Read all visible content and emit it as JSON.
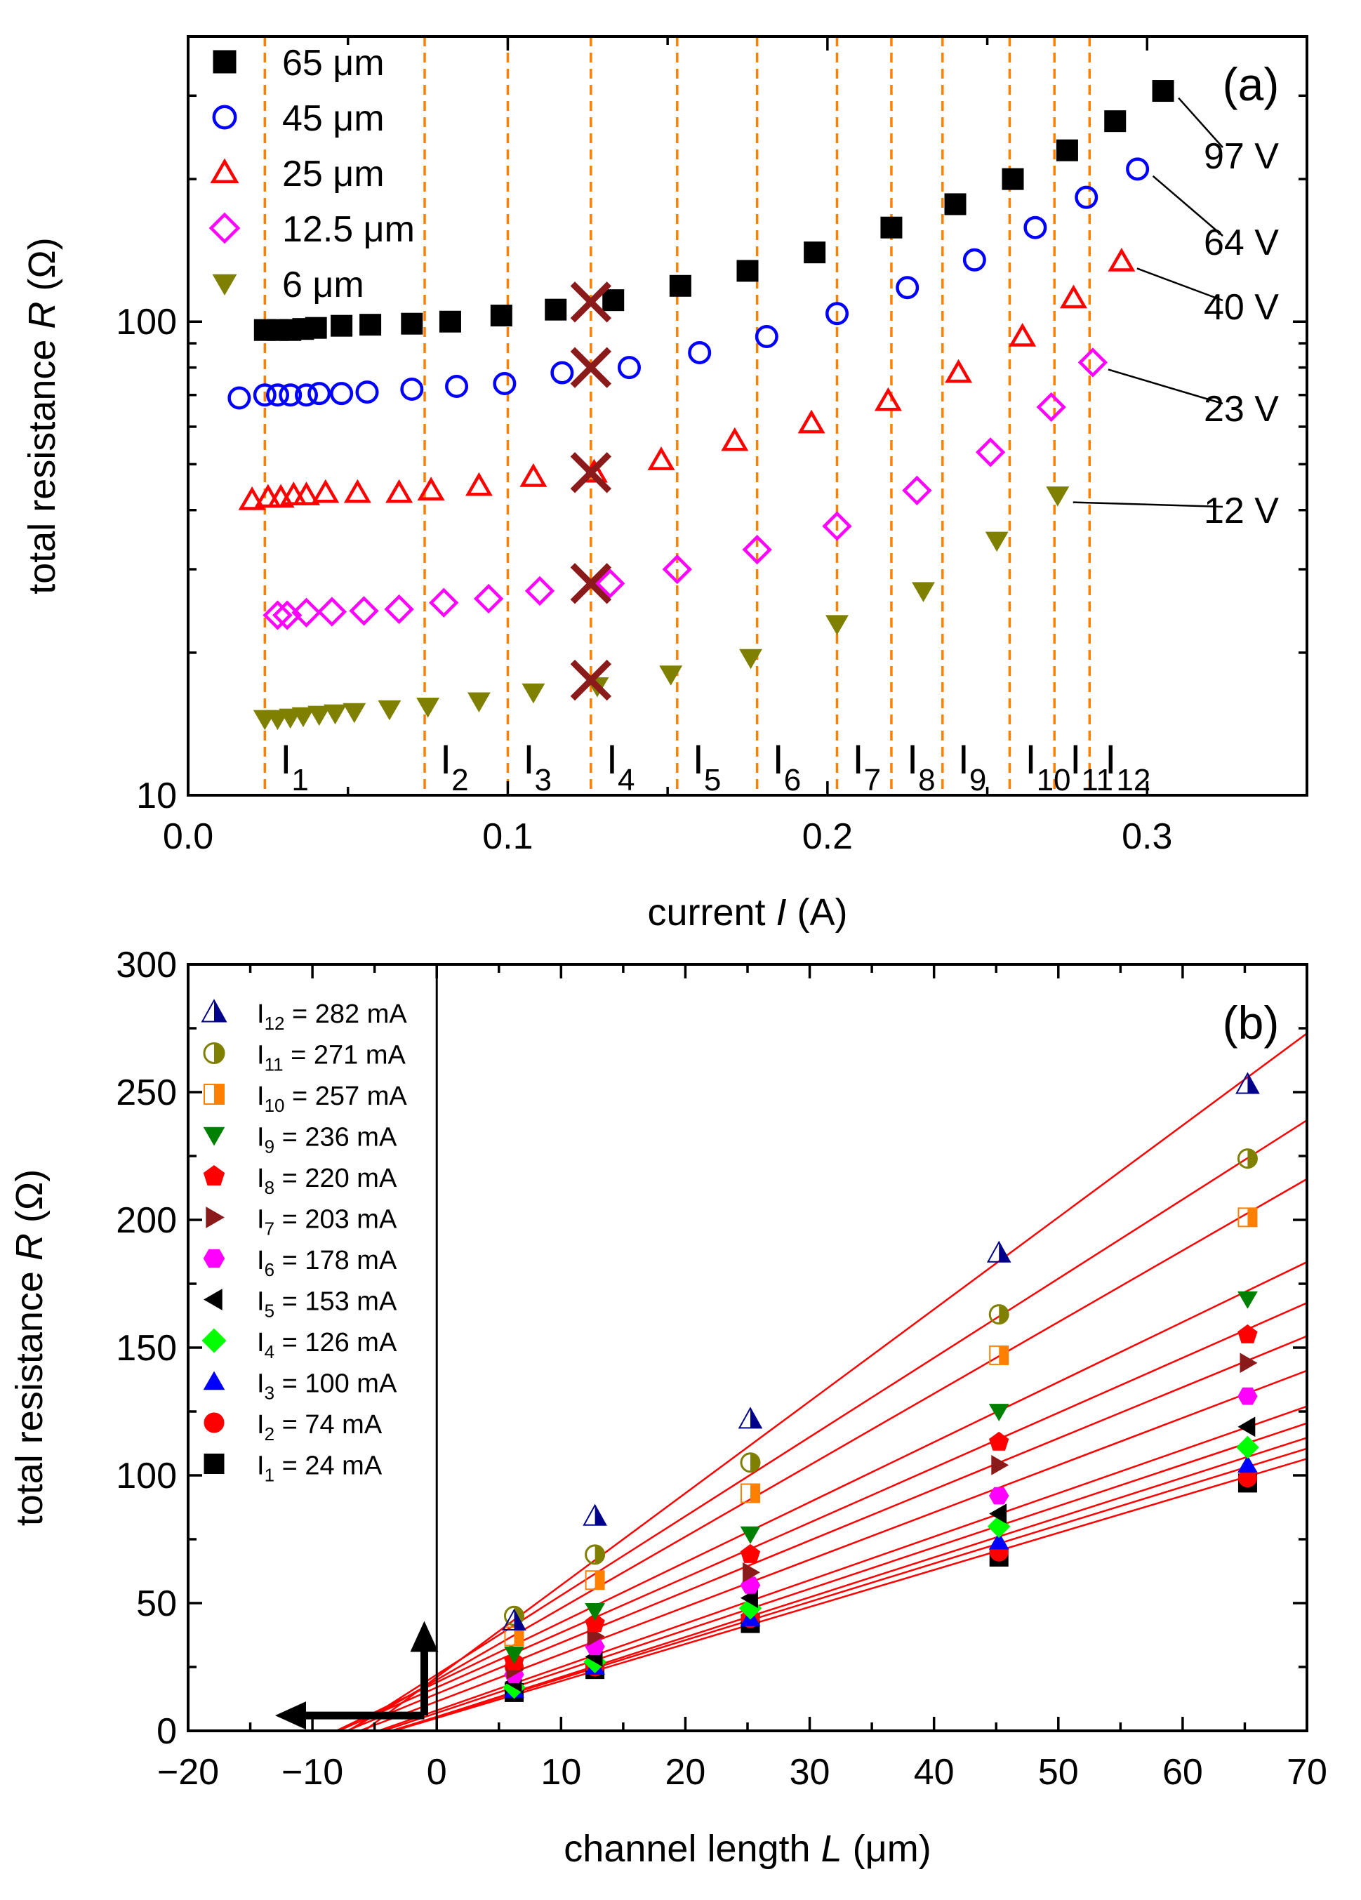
{
  "chart_data": [
    {
      "type": "scatter",
      "panel": "(a)",
      "xlabel": "current",
      "xlabel_var": "I",
      "xlabel_unit": "(A)",
      "ylabel": "total resistance",
      "ylabel_var": "R",
      "ylabel_unit": "(Ω)",
      "xlim": [
        0,
        0.35
      ],
      "ylim": [
        10,
        400
      ],
      "yscale": "log",
      "x_ticks": [
        0.0,
        0.1,
        0.2,
        0.3
      ],
      "x_tick_labels": [
        "0.0",
        "0.1",
        "0.2",
        "0.3"
      ],
      "y_ticks": [
        10,
        100
      ],
      "y_tick_labels": [
        "10",
        "100"
      ],
      "legend_position": "top-left",
      "series": [
        {
          "name": "65 μm",
          "marker": "square-filled",
          "color": "#000000",
          "x": [
            0.024,
            0.028,
            0.032,
            0.036,
            0.04,
            0.048,
            0.057,
            0.07,
            0.082,
            0.098,
            0.115,
            0.133,
            0.154,
            0.175,
            0.196,
            0.22,
            0.24,
            0.258,
            0.275,
            0.29,
            0.305
          ],
          "y": [
            96,
            96,
            96,
            96.5,
            97,
            98,
            98.5,
            99,
            100,
            103,
            106,
            111,
            119,
            128,
            140,
            158,
            177,
            200,
            230,
            265,
            307
          ]
        },
        {
          "name": "45 μm",
          "marker": "circle-open",
          "color": "#0000ff",
          "x": [
            0.016,
            0.024,
            0.028,
            0.032,
            0.037,
            0.041,
            0.048,
            0.056,
            0.07,
            0.084,
            0.099,
            0.117,
            0.138,
            0.16,
            0.181,
            0.203,
            0.225,
            0.246,
            0.265,
            0.281,
            0.297
          ],
          "y": [
            69,
            70,
            70,
            70,
            70,
            70.5,
            70.5,
            71,
            72,
            73,
            74,
            78,
            80,
            86,
            93,
            104,
            118,
            135,
            158,
            183,
            210
          ]
        },
        {
          "name": "25 μm",
          "marker": "triangle-open",
          "color": "#ff0000",
          "x": [
            0.02,
            0.025,
            0.029,
            0.033,
            0.037,
            0.043,
            0.053,
            0.066,
            0.076,
            0.091,
            0.108,
            0.127,
            0.148,
            0.171,
            0.195,
            0.219,
            0.241,
            0.261,
            0.277,
            0.292
          ],
          "y": [
            42,
            42.5,
            42.5,
            43,
            43,
            43.5,
            43.5,
            43.5,
            44,
            45,
            47,
            48,
            51,
            56,
            61,
            68,
            78,
            93,
            112,
            134
          ]
        },
        {
          "name": "12.5 μm",
          "marker": "diamond-open",
          "color": "#ff00ff",
          "x": [
            0.028,
            0.031,
            0.037,
            0.045,
            0.055,
            0.066,
            0.08,
            0.094,
            0.11,
            0.132,
            0.153,
            0.178,
            0.203,
            0.228,
            0.251,
            0.27,
            0.283
          ],
          "y": [
            24,
            24,
            24.3,
            24.4,
            24.5,
            24.7,
            25.5,
            26,
            27,
            28,
            30,
            33,
            37,
            44,
            53,
            66,
            82
          ]
        },
        {
          "name": "6 μm",
          "marker": "triangle-down-filled",
          "color": "#808000",
          "x": [
            0.024,
            0.028,
            0.032,
            0.036,
            0.041,
            0.046,
            0.052,
            0.063,
            0.075,
            0.091,
            0.108,
            0.128,
            0.151,
            0.176,
            0.203,
            0.23,
            0.253,
            0.272
          ],
          "y": [
            14.5,
            14.5,
            14.6,
            14.7,
            14.8,
            14.9,
            15,
            15.2,
            15.4,
            15.8,
            16.5,
            17,
            18,
            19.5,
            23,
            27,
            34.5,
            43
          ]
        }
      ],
      "crossed_points": {
        "x": 0.126,
        "y": [
          110,
          80,
          48,
          28,
          17.5
        ],
        "color": "#8b1a1a"
      },
      "vertical_lines": {
        "x": [
          0.024,
          0.074,
          0.1,
          0.126,
          0.153,
          0.178,
          0.203,
          0.22,
          0.236,
          0.257,
          0.271,
          0.282
        ],
        "labels": [
          {
            "base": "I",
            "sub": "1"
          },
          {
            "base": "I",
            "sub": "2"
          },
          {
            "base": "I",
            "sub": "3"
          },
          {
            "base": "I",
            "sub": "4"
          },
          {
            "base": "I",
            "sub": "5"
          },
          {
            "base": "I",
            "sub": "6"
          },
          {
            "base": "I",
            "sub": "7"
          },
          {
            "base": "I",
            "sub": "8"
          },
          {
            "base": "I",
            "sub": "9"
          },
          {
            "base": "I",
            "sub": "10"
          },
          {
            "base": "I",
            "sub": "11"
          },
          {
            "base": "I",
            "sub": "12"
          }
        ],
        "color": "#ff8000"
      },
      "annotations": [
        {
          "text": "97 V",
          "x": 0.305,
          "y": 307
        },
        {
          "text": "64 V",
          "x": 0.297,
          "y": 210
        },
        {
          "text": "40 V",
          "x": 0.292,
          "y": 134
        },
        {
          "text": "23 V",
          "x": 0.283,
          "y": 82
        },
        {
          "text": "12 V",
          "x": 0.272,
          "y": 43
        }
      ]
    },
    {
      "type": "scatter",
      "panel": "(b)",
      "xlabel": "channel length",
      "xlabel_var": "L",
      "xlabel_unit": "(μm)",
      "ylabel": "total resistance",
      "ylabel_var": "R",
      "ylabel_unit": "(Ω)",
      "xlim": [
        -20,
        70
      ],
      "ylim": [
        0,
        300
      ],
      "x_ticks": [
        -20,
        -10,
        0,
        10,
        20,
        30,
        40,
        50,
        60,
        70
      ],
      "x_tick_labels": [
        "−20",
        "−10",
        "0",
        "10",
        "20",
        "30",
        "40",
        "50",
        "60",
        "70"
      ],
      "y_ticks": [
        0,
        50,
        100,
        150,
        200,
        250,
        300
      ],
      "y_tick_labels": [
        "0",
        "50",
        "100",
        "150",
        "200",
        "250",
        "300"
      ],
      "legend_position": "top-left",
      "x": [
        6,
        12.5,
        25,
        45,
        65
      ],
      "series": [
        {
          "base": "I",
          "sub": "12",
          "rest": " = 282 mA",
          "marker": "triangle-half",
          "color": "#00008b",
          "values": [
            43,
            84,
            122,
            187,
            253
          ],
          "fit": {
            "slope": 3.6,
            "intercept": 21
          }
        },
        {
          "base": "I",
          "sub": "11",
          "rest": " = 271 mA",
          "marker": "circle-half",
          "color": "#808000",
          "values": [
            45,
            69,
            105,
            163,
            224
          ],
          "fit": {
            "slope": 3.1,
            "intercept": 22
          }
        },
        {
          "base": "I",
          "sub": "10",
          "rest": " = 257 mA",
          "marker": "square-half",
          "color": "#ff8000",
          "values": [
            37,
            59,
            93,
            147,
            201
          ],
          "fit": {
            "slope": 2.8,
            "intercept": 20
          }
        },
        {
          "base": "I",
          "sub": "9",
          "rest": " = 236 mA",
          "marker": "triangle-down-filled",
          "color": "#008000",
          "values": [
            30,
            47,
            77,
            125,
            169
          ],
          "fit": {
            "slope": 2.35,
            "intercept": 19
          }
        },
        {
          "base": "I",
          "sub": "8",
          "rest": " = 220 mA",
          "marker": "pentagon-filled",
          "color": "#ff0000",
          "values": [
            27,
            42,
            69,
            113,
            155
          ],
          "fit": {
            "slope": 2.15,
            "intercept": 17
          }
        },
        {
          "base": "I",
          "sub": "7",
          "rest": " = 203 mA",
          "marker": "triangle-right-filled",
          "color": "#8b1a1a",
          "values": [
            24,
            37,
            62,
            104,
            144
          ],
          "fit": {
            "slope": 2.0,
            "intercept": 14.5
          }
        },
        {
          "base": "I",
          "sub": "6",
          "rest": " = 178 mA",
          "marker": "hexagon-filled",
          "color": "#ff00ff",
          "values": [
            22,
            33,
            57,
            92,
            131
          ],
          "fit": {
            "slope": 1.85,
            "intercept": 11.5
          }
        },
        {
          "base": "I",
          "sub": "5",
          "rest": " = 153 mA",
          "marker": "triangle-left-filled",
          "color": "#000000",
          "values": [
            19,
            29,
            52,
            85,
            119
          ],
          "fit": {
            "slope": 1.7,
            "intercept": 8
          }
        },
        {
          "base": "I",
          "sub": "4",
          "rest": " = 126 mA",
          "marker": "diamond-filled",
          "color": "#00ff00",
          "values": [
            17,
            27,
            48,
            80,
            111
          ],
          "fit": {
            "slope": 1.62,
            "intercept": 7
          }
        },
        {
          "base": "I",
          "sub": "3",
          "rest": " = 100 mA",
          "marker": "triangle-filled",
          "color": "#0000ff",
          "values": [
            16,
            25,
            44,
            74,
            104
          ],
          "fit": {
            "slope": 1.56,
            "intercept": 5.5
          }
        },
        {
          "base": "I",
          "sub": "2",
          "rest": " = 74 mA",
          "marker": "circle-filled",
          "color": "#ff0000",
          "values": [
            25,
            25,
            44,
            70,
            99
          ],
          "fit": {
            "slope": 1.5,
            "intercept": 5.5
          }
        },
        {
          "base": "I",
          "sub": "1",
          "rest": " = 24 mA",
          "marker": "square-filled",
          "color": "#000000",
          "values": [
            15,
            24,
            42,
            68,
            97
          ],
          "fit": {
            "slope": 1.45,
            "intercept": 5
          }
        }
      ],
      "fit_line_color": "#ff0000",
      "arrows": [
        {
          "from": [
            -1,
            6
          ],
          "to": [
            -13,
            6
          ]
        },
        {
          "from": [
            -1,
            6
          ],
          "to": [
            -1,
            43
          ]
        }
      ],
      "vertical_reference_line_x": 0
    }
  ]
}
